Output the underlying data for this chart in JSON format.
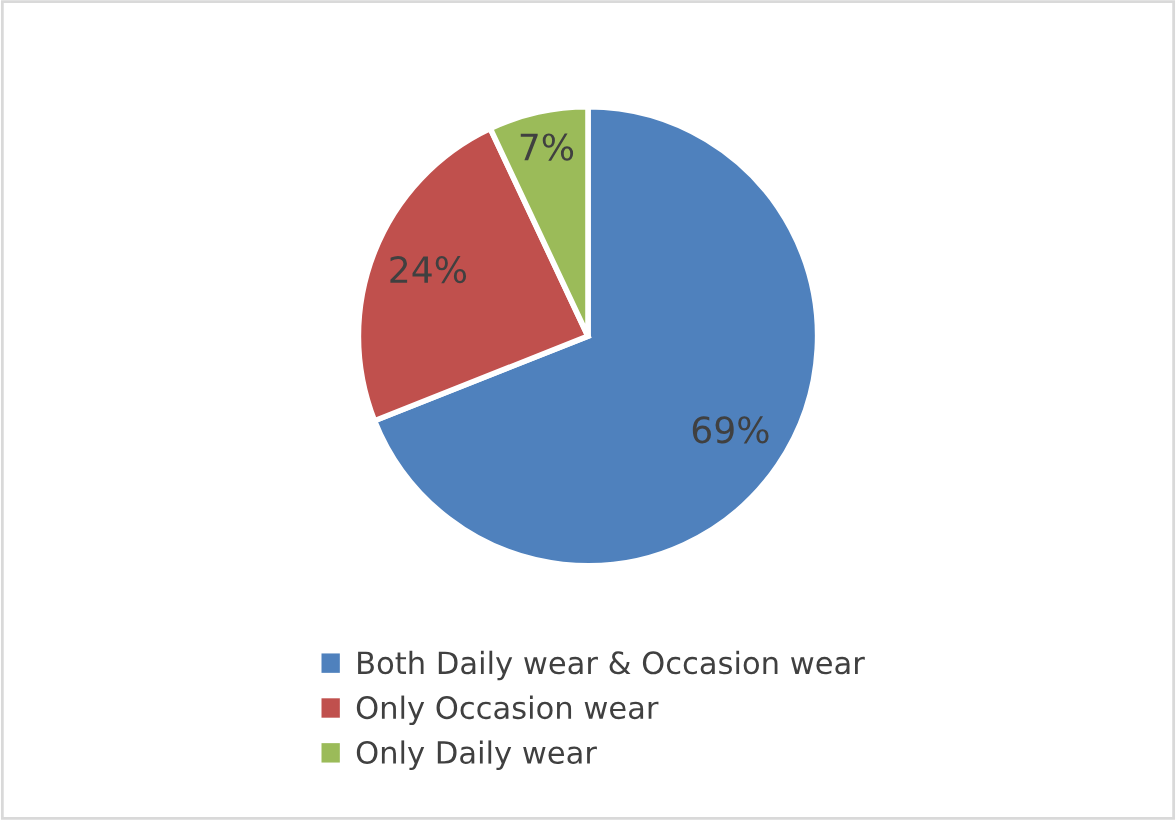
{
  "chart_data": {
    "type": "pie",
    "categories": [
      "Both Daily wear & Occasion wear",
      "Only Occasion wear",
      "Only Daily wear"
    ],
    "values": [
      69,
      24,
      7
    ],
    "colors": [
      "#4f81bd",
      "#c0504d",
      "#9bbb59"
    ],
    "value_labels": [
      "69%",
      "24%",
      "7%"
    ],
    "legend": "bottom"
  }
}
